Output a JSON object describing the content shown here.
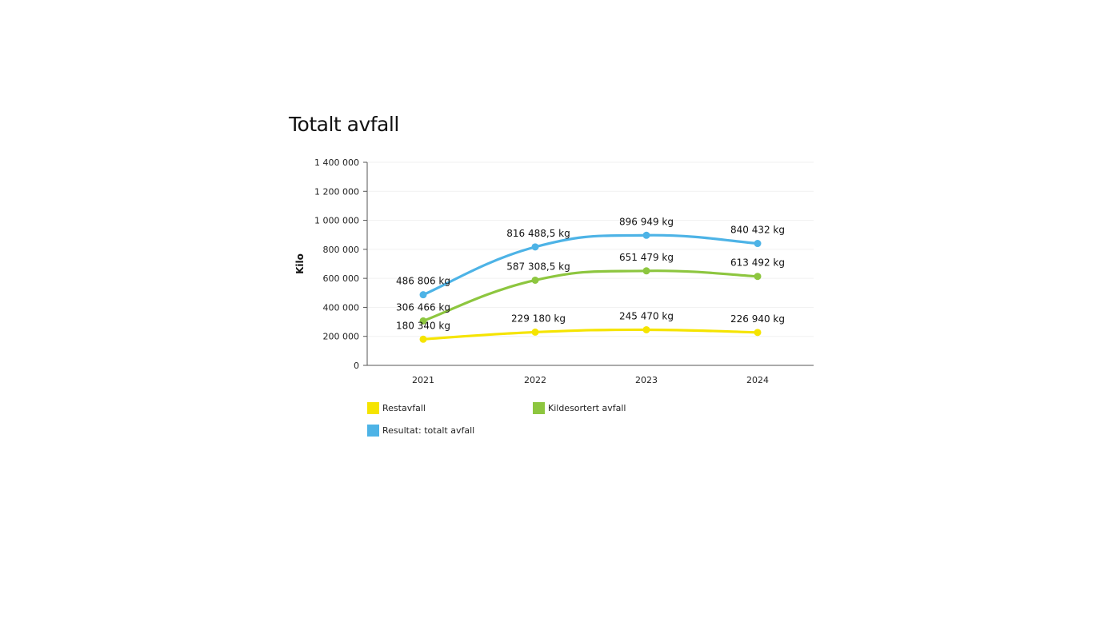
{
  "chart_data": {
    "type": "line",
    "title": "Totalt avfall",
    "xlabel": "",
    "ylabel": "Kilo",
    "categories": [
      "2021",
      "2022",
      "2023",
      "2024"
    ],
    "ylim": [
      0,
      1400000
    ],
    "yticks": [
      0,
      200000,
      400000,
      600000,
      800000,
      1000000,
      1200000,
      1400000
    ],
    "ytick_labels": [
      "0",
      "200 000",
      "400 000",
      "600 000",
      "800 000",
      "1 000 000",
      "1 200 000",
      "1 400 000"
    ],
    "grid": true,
    "legend_position": "bottom",
    "series": [
      {
        "key": "restavfall",
        "name": "Restavfall",
        "color": "#f5e400",
        "values": [
          180340,
          229180,
          245470,
          226940
        ],
        "labels": [
          "180 340 kg",
          "229 180 kg",
          "245 470 kg",
          "226 940 kg"
        ]
      },
      {
        "key": "kildesortert",
        "name": "Kildesortert avfall",
        "color": "#8dc63f",
        "values": [
          306466,
          587308.5,
          651479,
          613492
        ],
        "labels": [
          "306 466 kg",
          "587 308,5 kg",
          "651 479 kg",
          "613 492 kg"
        ]
      },
      {
        "key": "totalt",
        "name": "Resultat: totalt avfall",
        "color": "#4db3e6",
        "values": [
          486806,
          816488.5,
          896949,
          840432
        ],
        "labels": [
          "486 806 kg",
          "816 488,5 kg",
          "896 949 kg",
          "840 432 kg"
        ]
      }
    ]
  }
}
